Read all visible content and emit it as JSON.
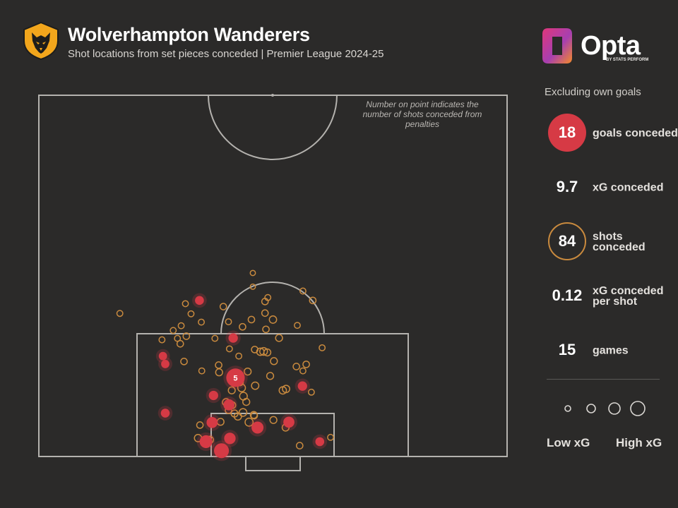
{
  "header": {
    "title": "Wolverhampton Wanderers",
    "subtitle": "Shot locations from set pieces conceded | Premier League 2024-25"
  },
  "logo": {
    "name": "Opta",
    "sub": "BY STATS PERFORM"
  },
  "note": "Number on point indicates the number of shots conceded from penalties",
  "colors": {
    "goal": "#d63a45",
    "shot": "#c98a3e",
    "background": "#2b2a29",
    "lines": "#b4b2ae"
  },
  "sidebar": {
    "caption": "Excluding own goals",
    "stats": [
      {
        "value": "18",
        "label": "goals conceded",
        "style": "goal"
      },
      {
        "value": "9.7",
        "label": "xG conceded",
        "style": "plain"
      },
      {
        "value": "84",
        "label": "shots conceded",
        "style": "ring"
      },
      {
        "value": "0.12",
        "label": "xG conceded per shot",
        "style": "plain"
      },
      {
        "value": "15",
        "label": "games",
        "style": "plain"
      }
    ]
  },
  "legend": {
    "low": "Low xG",
    "high": "High xG"
  },
  "chart_data": {
    "type": "scatter",
    "description_axis": "pitch coordinates: x = across pitch (0 left touchline to 100 right), y = distance from goal line (0 at goal line)",
    "xlim": [
      0,
      100
    ],
    "ylim": [
      0,
      100
    ],
    "series": [
      {
        "name": "Goals",
        "points": [
          {
            "x": 34.3,
            "y": 43.2,
            "xg": 0.1
          },
          {
            "x": 41.5,
            "y": 32.8,
            "xg": 0.12
          },
          {
            "x": 42.0,
            "y": 21.8,
            "xg": 0.78,
            "label": "5"
          },
          {
            "x": 26.5,
            "y": 27.8,
            "xg": 0.08
          },
          {
            "x": 27.0,
            "y": 25.6,
            "xg": 0.08
          },
          {
            "x": 37.3,
            "y": 16.9,
            "xg": 0.12
          },
          {
            "x": 40.6,
            "y": 14.3,
            "xg": 0.2
          },
          {
            "x": 27.0,
            "y": 12.0,
            "xg": 0.1
          },
          {
            "x": 56.3,
            "y": 19.5,
            "xg": 0.12
          },
          {
            "x": 53.4,
            "y": 9.5,
            "xg": 0.2
          },
          {
            "x": 37.0,
            "y": 9.4,
            "xg": 0.2
          },
          {
            "x": 46.7,
            "y": 8.0,
            "xg": 0.25
          },
          {
            "x": 60.0,
            "y": 4.1,
            "xg": 0.1
          },
          {
            "x": 40.8,
            "y": 5.0,
            "xg": 0.22
          },
          {
            "x": 35.7,
            "y": 4.1,
            "xg": 0.3
          },
          {
            "x": 39.0,
            "y": 1.6,
            "xg": 0.45
          }
        ]
      },
      {
        "name": "Shots",
        "points": [
          {
            "x": 45.7,
            "y": 50.8,
            "xg": 0.01
          },
          {
            "x": 45.7,
            "y": 47.0,
            "xg": 0.01
          },
          {
            "x": 56.4,
            "y": 45.8,
            "xg": 0.02
          },
          {
            "x": 58.5,
            "y": 43.2,
            "xg": 0.03
          },
          {
            "x": 48.9,
            "y": 44.0,
            "xg": 0.02
          },
          {
            "x": 48.3,
            "y": 42.9,
            "xg": 0.03
          },
          {
            "x": 39.4,
            "y": 41.5,
            "xg": 0.03
          },
          {
            "x": 31.3,
            "y": 42.3,
            "xg": 0.02
          },
          {
            "x": 17.3,
            "y": 39.6,
            "xg": 0.02
          },
          {
            "x": 32.5,
            "y": 39.5,
            "xg": 0.02
          },
          {
            "x": 34.7,
            "y": 37.2,
            "xg": 0.02
          },
          {
            "x": 45.4,
            "y": 37.9,
            "xg": 0.03
          },
          {
            "x": 50.0,
            "y": 37.9,
            "xg": 0.05
          },
          {
            "x": 48.5,
            "y": 35.2,
            "xg": 0.03
          },
          {
            "x": 30.4,
            "y": 36.2,
            "xg": 0.02
          },
          {
            "x": 31.5,
            "y": 33.3,
            "xg": 0.03
          },
          {
            "x": 29.6,
            "y": 32.7,
            "xg": 0.02
          },
          {
            "x": 51.3,
            "y": 32.8,
            "xg": 0.04
          },
          {
            "x": 26.3,
            "y": 32.3,
            "xg": 0.02
          },
          {
            "x": 37.6,
            "y": 32.7,
            "xg": 0.02
          },
          {
            "x": 30.2,
            "y": 31.2,
            "xg": 0.03
          },
          {
            "x": 40.7,
            "y": 29.8,
            "xg": 0.02
          },
          {
            "x": 47.3,
            "y": 29.0,
            "xg": 0.05
          },
          {
            "x": 48.0,
            "y": 29.1,
            "xg": 0.06
          },
          {
            "x": 60.5,
            "y": 30.1,
            "xg": 0.02
          },
          {
            "x": 48.8,
            "y": 28.8,
            "xg": 0.04
          },
          {
            "x": 46.1,
            "y": 29.6,
            "xg": 0.03
          },
          {
            "x": 42.7,
            "y": 27.8,
            "xg": 0.02
          },
          {
            "x": 50.2,
            "y": 26.4,
            "xg": 0.04
          },
          {
            "x": 31.0,
            "y": 26.3,
            "xg": 0.03
          },
          {
            "x": 57.1,
            "y": 25.5,
            "xg": 0.03
          },
          {
            "x": 55.0,
            "y": 24.9,
            "xg": 0.03
          },
          {
            "x": 38.4,
            "y": 25.3,
            "xg": 0.03
          },
          {
            "x": 56.4,
            "y": 23.7,
            "xg": 0.02
          },
          {
            "x": 34.8,
            "y": 23.7,
            "xg": 0.02
          },
          {
            "x": 38.5,
            "y": 23.3,
            "xg": 0.04
          },
          {
            "x": 44.6,
            "y": 23.5,
            "xg": 0.04
          },
          {
            "x": 49.4,
            "y": 22.3,
            "xg": 0.04
          },
          {
            "x": 41.7,
            "y": 21.6,
            "xg": 0.04
          },
          {
            "x": 42.9,
            "y": 20.6,
            "xg": 0.05
          },
          {
            "x": 43.3,
            "y": 19.0,
            "xg": 0.06
          },
          {
            "x": 46.2,
            "y": 19.6,
            "xg": 0.05
          },
          {
            "x": 41.2,
            "y": 18.3,
            "xg": 0.04
          },
          {
            "x": 52.1,
            "y": 18.3,
            "xg": 0.05
          },
          {
            "x": 52.8,
            "y": 18.7,
            "xg": 0.05
          },
          {
            "x": 58.2,
            "y": 17.8,
            "xg": 0.02
          },
          {
            "x": 43.7,
            "y": 16.7,
            "xg": 0.06
          },
          {
            "x": 44.3,
            "y": 15.1,
            "xg": 0.04
          },
          {
            "x": 40.0,
            "y": 15.0,
            "xg": 0.05
          },
          {
            "x": 41.3,
            "y": 14.2,
            "xg": 0.04
          },
          {
            "x": 40.5,
            "y": 12.8,
            "xg": 0.03
          },
          {
            "x": 41.8,
            "y": 11.9,
            "xg": 0.04
          },
          {
            "x": 42.5,
            "y": 11.1,
            "xg": 0.05
          },
          {
            "x": 43.6,
            "y": 12.2,
            "xg": 0.06
          },
          {
            "x": 45.9,
            "y": 11.5,
            "xg": 0.04
          },
          {
            "x": 46.0,
            "y": 11.3,
            "xg": 0.03
          },
          {
            "x": 44.9,
            "y": 9.5,
            "xg": 0.07
          },
          {
            "x": 38.8,
            "y": 9.6,
            "xg": 0.04
          },
          {
            "x": 34.4,
            "y": 8.7,
            "xg": 0.03
          },
          {
            "x": 34.0,
            "y": 5.1,
            "xg": 0.05
          },
          {
            "x": 36.5,
            "y": 4.6,
            "xg": 0.05
          },
          {
            "x": 50.1,
            "y": 10.1,
            "xg": 0.04
          },
          {
            "x": 52.7,
            "y": 8.0,
            "xg": 0.04
          },
          {
            "x": 55.7,
            "y": 3.0,
            "xg": 0.03
          },
          {
            "x": 62.3,
            "y": 5.3,
            "xg": 0.02
          },
          {
            "x": 48.3,
            "y": 39.7,
            "xg": 0.03
          },
          {
            "x": 28.7,
            "y": 34.9,
            "xg": 0.02
          },
          {
            "x": 40.5,
            "y": 37.3,
            "xg": 0.02
          },
          {
            "x": 43.5,
            "y": 35.9,
            "xg": 0.03
          },
          {
            "x": 55.2,
            "y": 36.3,
            "xg": 0.02
          }
        ]
      }
    ],
    "size_legend": [
      "Low xG",
      "High xG"
    ]
  }
}
